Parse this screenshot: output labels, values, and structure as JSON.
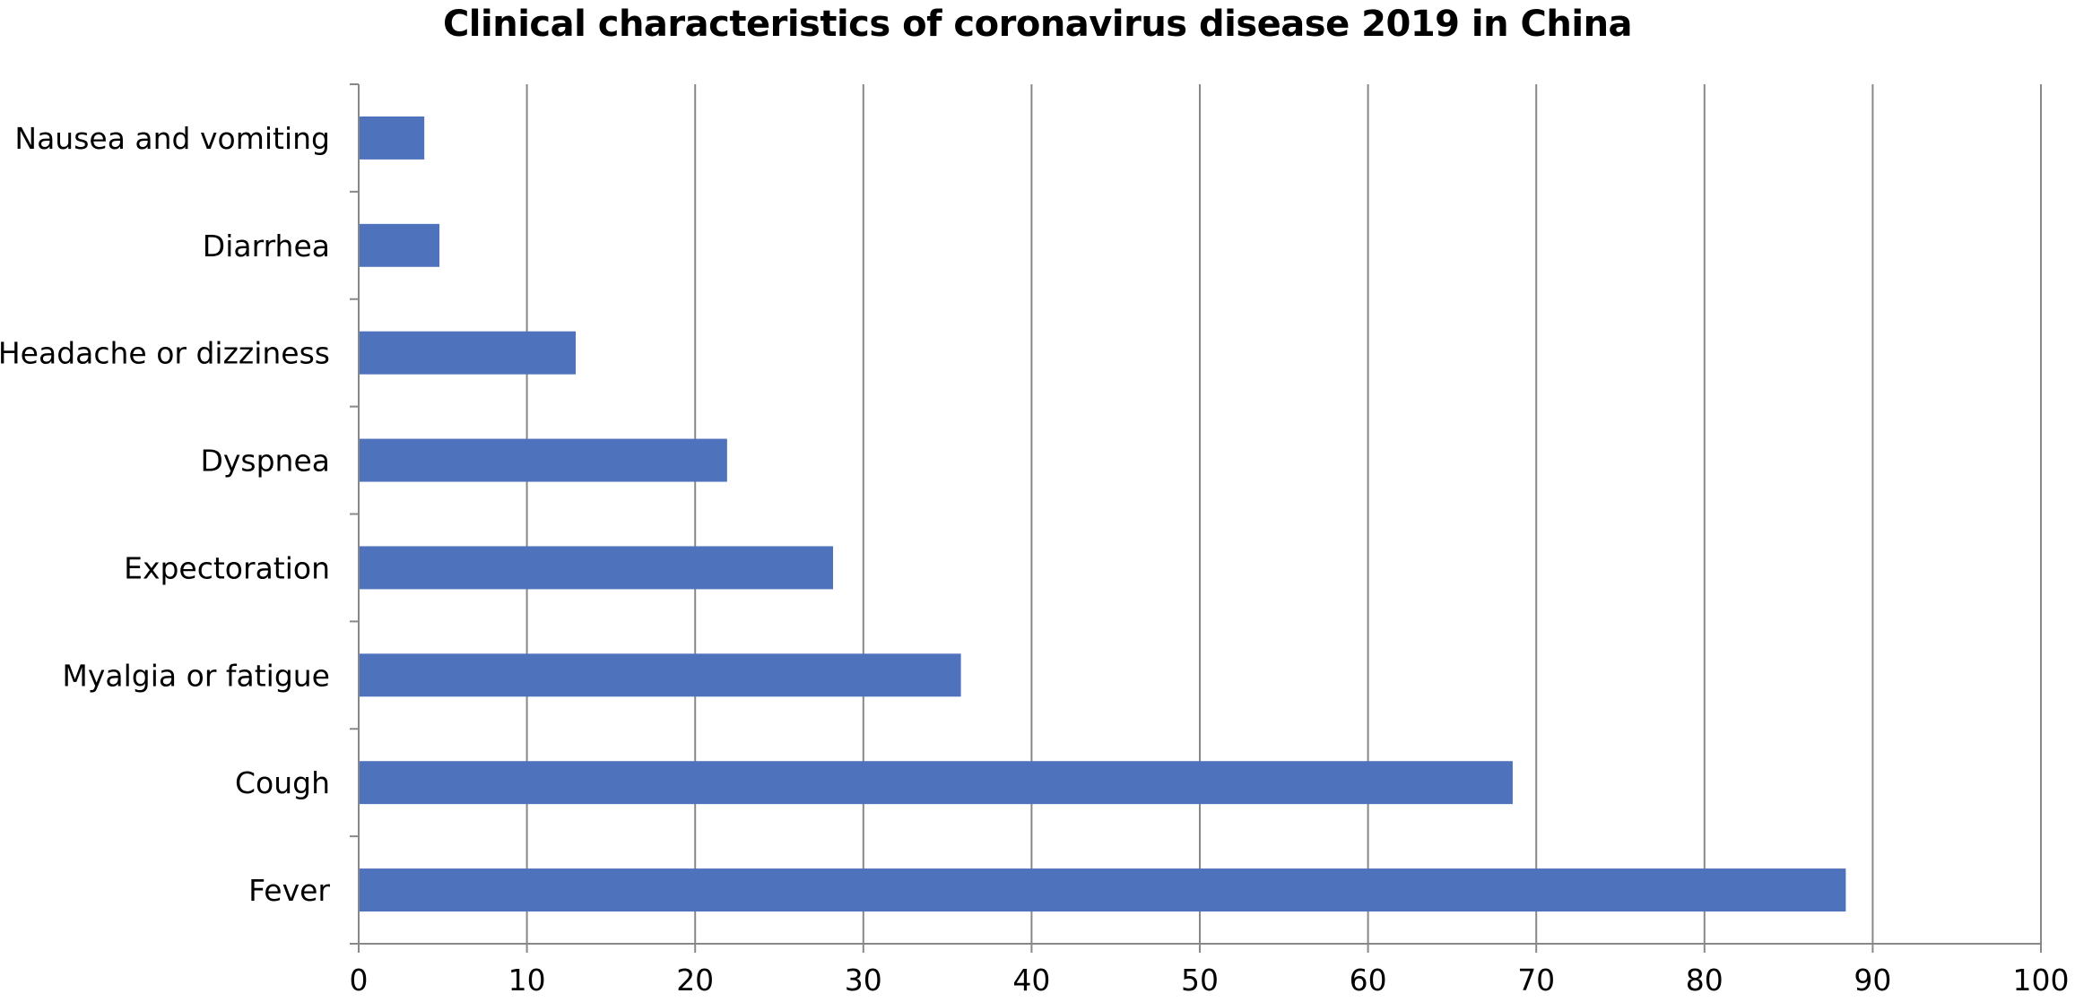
{
  "chart_data": {
    "type": "bar",
    "orientation": "horizontal",
    "title": "Clinical characteristics of coronavirus disease 2019 in China",
    "xlabel": "",
    "ylabel": "",
    "categories": [
      "Nausea and vomiting",
      "Diarrhea",
      "Headache or dizziness",
      "Dyspnea",
      "Expectoration",
      "Myalgia or fatigue",
      "Cough",
      "Fever"
    ],
    "values": [
      3.9,
      4.8,
      12.9,
      21.9,
      28.2,
      35.8,
      68.6,
      88.4
    ],
    "xlim": [
      0,
      100
    ],
    "xticks": [
      0,
      10,
      20,
      30,
      40,
      50,
      60,
      70,
      80,
      90,
      100
    ],
    "grid": "vertical",
    "legend": "none",
    "bar_color": "#4F72BD",
    "grid_color": "#888888"
  }
}
